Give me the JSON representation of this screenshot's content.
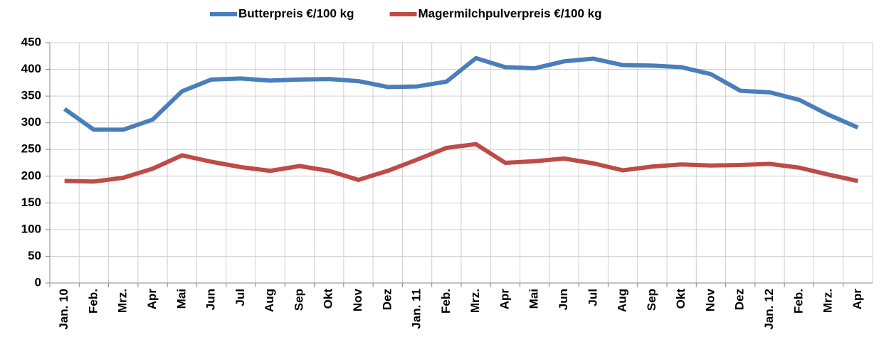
{
  "chart_data": {
    "type": "line",
    "categories": [
      "Jan. 10",
      "Feb.",
      "Mrz.",
      "Apr",
      "Mai",
      "Jun",
      "Jul",
      "Aug",
      "Sep",
      "Okt",
      "Nov",
      "Dez",
      "Jan. 11",
      "Feb.",
      "Mrz.",
      "Apr",
      "Mai",
      "Jun",
      "Jul",
      "Aug",
      "Sep",
      "Okt",
      "Nov",
      "Dez",
      "Jan. 12",
      "Feb.",
      "Mrz.",
      "Apr"
    ],
    "series": [
      {
        "name": "Butterpreis €/100 kg",
        "color": "#4a7ebb",
        "values": [
          326,
          287,
          287,
          306,
          359,
          381,
          383,
          379,
          381,
          382,
          378,
          367,
          368,
          377,
          421,
          404,
          402,
          415,
          420,
          408,
          407,
          404,
          391,
          360,
          357,
          343,
          315,
          291
        ]
      },
      {
        "name": "Magermilchpulverpreis €/100 kg",
        "color": "#be4b48",
        "values": [
          191,
          190,
          197,
          214,
          239,
          227,
          217,
          210,
          219,
          210,
          193,
          210,
          231,
          253,
          260,
          225,
          228,
          233,
          224,
          211,
          218,
          222,
          220,
          221,
          223,
          216,
          203,
          191
        ]
      }
    ],
    "ylim": [
      0,
      450
    ],
    "yticks": [
      0,
      50,
      100,
      150,
      200,
      250,
      300,
      350,
      400,
      450
    ],
    "grid": true,
    "legend": "top"
  }
}
